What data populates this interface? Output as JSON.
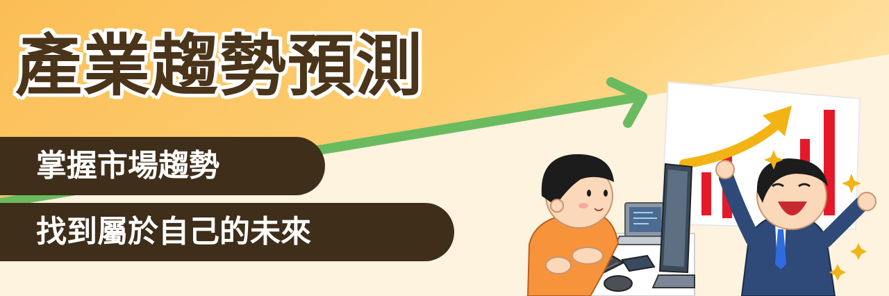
{
  "title": "產業趨勢預測",
  "subtitle_lines": [
    "掌握市場趨勢",
    "找到屬於自己的未來"
  ],
  "colors": {
    "bg_top": "#fcc25a",
    "bg_bottom": "#fef4e2",
    "title_text": "#4a341a",
    "pill_bg": "#3e2e1a",
    "arrow_green": "#6abb5f",
    "chart_bars": "#e5192a",
    "chart_arrow": "#f2b414"
  },
  "illustration": {
    "left_person": "boy-typing-at-computer",
    "right_person": "businessman-cheering",
    "board": "rising-bar-chart-board"
  }
}
